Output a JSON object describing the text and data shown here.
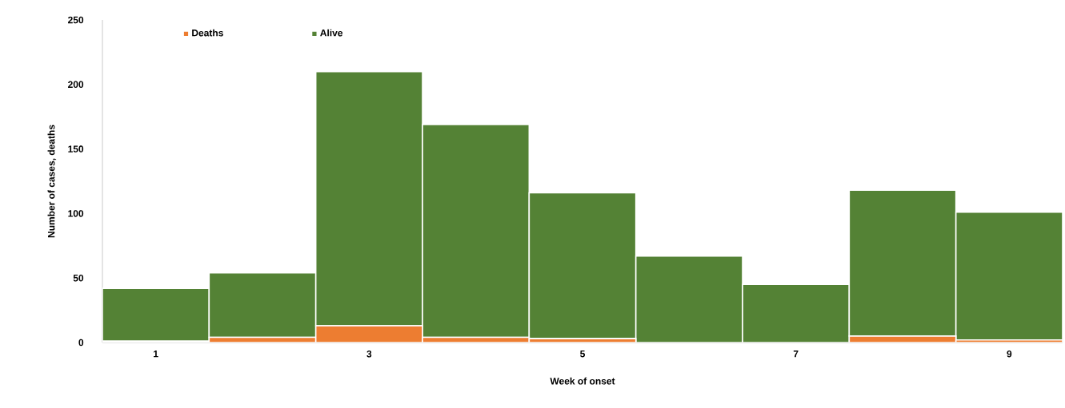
{
  "chart_data": {
    "type": "bar",
    "stacked": true,
    "categories": [
      "1",
      null,
      "3",
      null,
      "5",
      null,
      "7",
      null,
      "9"
    ],
    "series": [
      {
        "name": "Deaths",
        "color": "#ed7d31",
        "values": [
          1,
          4,
          13,
          4,
          3,
          0,
          0,
          5,
          2
        ]
      },
      {
        "name": "Alive",
        "color": "#548235",
        "values": [
          41,
          50,
          197,
          165,
          113,
          67,
          45,
          113,
          99
        ]
      }
    ],
    "xlabel": "Week of onset",
    "ylabel": "Number of cases, deaths",
    "ylim": [
      0,
      250
    ],
    "yticks": [
      0,
      50,
      100,
      150,
      200,
      250
    ],
    "legend": "top left"
  }
}
